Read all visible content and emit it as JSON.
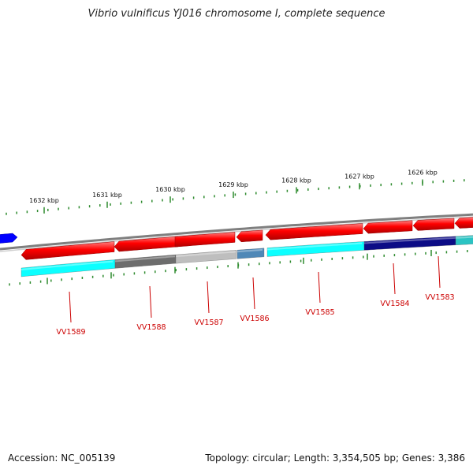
{
  "title": "Vibrio vulnificus YJ016 chromosome I, complete sequence",
  "footer": {
    "accession_label": "Accession:",
    "accession": "NC_005139",
    "topology_label": "Topology:",
    "topology": "circular",
    "length_label": "Length:",
    "length": "3,354,505 bp",
    "genes_label": "Genes:",
    "genes": "3,386"
  },
  "ruler_labels": [
    "1632 kbp",
    "1631 kbp",
    "1630 kbp",
    "1629 kbp",
    "1628 kbp",
    "1627 kbp",
    "1626 kbp"
  ],
  "gene_labels": [
    "VV1589",
    "VV1588",
    "VV1587",
    "VV1586",
    "VV1585",
    "VV1584",
    "VV1583"
  ],
  "colors": {
    "forward_feature": "#ff0000",
    "forward_feature_far_left": "#0000ff",
    "backbone": "#888888",
    "tick": "#2e8b2e",
    "label": "#cc0000",
    "cog": [
      "#00ffff",
      "#666666",
      "#bbbbbb",
      "#4682b4",
      "#00ffff",
      "#000080",
      "#20c0c0"
    ]
  }
}
